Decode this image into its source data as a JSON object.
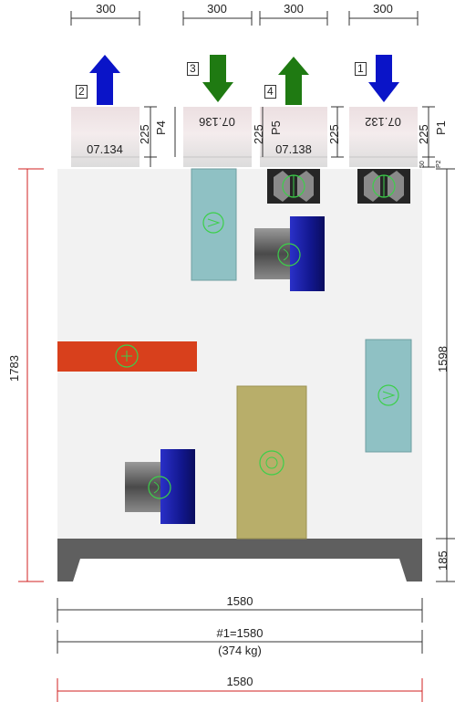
{
  "top_dimensions": [
    "300",
    "300",
    "300",
    "300"
  ],
  "connections": [
    {
      "number": "2",
      "direction": "up",
      "color": "#0a14c8",
      "port": "P4",
      "size": "225",
      "code": "07.134",
      "code_flipped": false
    },
    {
      "number": "3",
      "direction": "down",
      "color": "#1f7a12",
      "port": "",
      "size": "225",
      "code": "07.136",
      "code_flipped": true
    },
    {
      "number": "4",
      "direction": "up",
      "color": "#1f7a12",
      "port": "P5",
      "size": "225",
      "code": "07.138",
      "code_flipped": false
    },
    {
      "number": "1",
      "direction": "down",
      "color": "#0a14c8",
      "port": "P1",
      "size": "225",
      "code": "07.132",
      "code_flipped": true
    }
  ],
  "small_dims": [
    "50",
    "P2"
  ],
  "left_height": "1783",
  "right_height_upper": "1598",
  "right_height_lower": "185",
  "bottom": {
    "width_top": "1580",
    "section_label": "#1=1580",
    "weight": "(374 kg)",
    "width_red": "1580"
  },
  "colors": {
    "body": "#f2f2f2",
    "base": "#5f5f5f",
    "heater": "#d8401c",
    "cooler": "#b8ae6a",
    "filter": "#8fc1c4",
    "motor_blue": "#15189a",
    "motor_gray": "#5c5c5c",
    "damper_dark": "#262626",
    "symbol_green": "#3ccf4a",
    "dim_red": "#d02020"
  }
}
